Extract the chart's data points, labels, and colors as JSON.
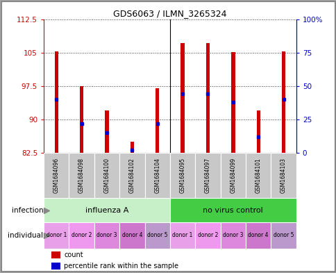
{
  "title": "GDS6063 / ILMN_3265324",
  "samples": [
    "GSM1684096",
    "GSM1684098",
    "GSM1684100",
    "GSM1684102",
    "GSM1684104",
    "GSM1684095",
    "GSM1684097",
    "GSM1684099",
    "GSM1684101",
    "GSM1684103"
  ],
  "counts": [
    105.2,
    97.5,
    92.0,
    85.0,
    97.0,
    107.2,
    107.2,
    105.1,
    92.0,
    105.2
  ],
  "percentiles": [
    40,
    22,
    15,
    2,
    22,
    44,
    44,
    38,
    12,
    40
  ],
  "ymin": 82.5,
  "ymax": 112.5,
  "yticks": [
    82.5,
    90,
    97.5,
    105,
    112.5
  ],
  "yticklabels": [
    "82.5",
    "90",
    "97.5",
    "105",
    "112.5"
  ],
  "right_yticks": [
    0,
    25,
    50,
    75,
    100
  ],
  "right_yticklabels": [
    "0",
    "25",
    "50",
    "75",
    "100%"
  ],
  "bar_color": "#cc0000",
  "marker_color": "#0000cc",
  "infection_groups": [
    {
      "label": "influenza A",
      "start": 0,
      "end": 5,
      "color": "#c8f0c8"
    },
    {
      "label": "no virus control",
      "start": 5,
      "end": 10,
      "color": "#44cc44"
    }
  ],
  "individuals": [
    "donor 1",
    "donor 2",
    "donor 3",
    "donor 4",
    "donor 5",
    "donor 1",
    "donor 2",
    "donor 3",
    "donor 4",
    "donor 5"
  ],
  "individual_colors": [
    "#dd88dd",
    "#ee99ee",
    "#cc77cc",
    "#dd88dd",
    "#ee99ee",
    "#dd88dd",
    "#ee99ee",
    "#cc77cc",
    "#dd88dd",
    "#ee99ee"
  ],
  "individual_color": "#dd88ee",
  "sample_bg_color": "#c8c8c8",
  "left_axis_color": "#cc0000",
  "right_axis_color": "#0000cc",
  "bar_width": 0.15,
  "fig_border_color": "#aaaaaa"
}
